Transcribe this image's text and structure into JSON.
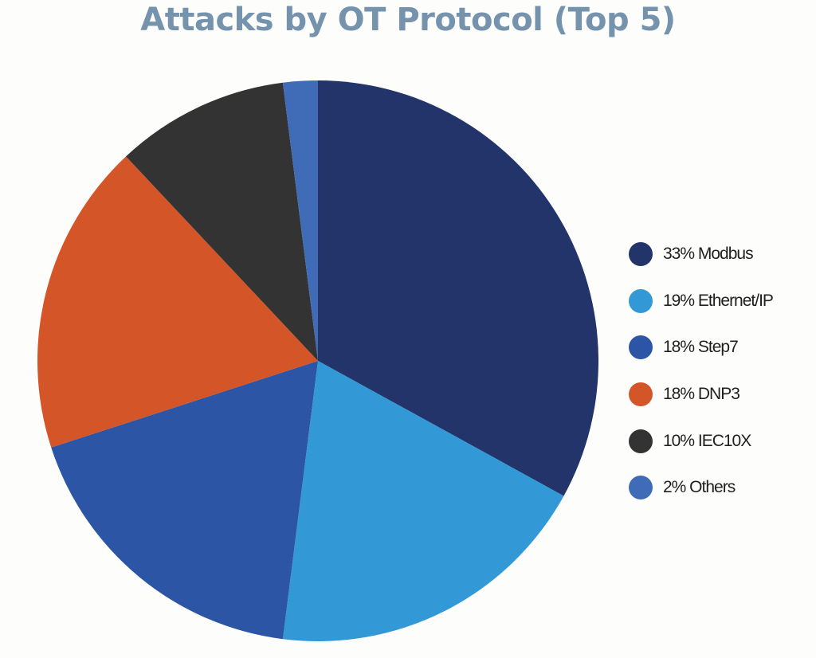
{
  "title": "Attacks by OT Protocol (Top 5)",
  "chart_data": {
    "type": "pie",
    "title": "Attacks by OT Protocol (Top 5)",
    "categories": [
      "Modbus",
      "Ethernet/IP",
      "Step7",
      "DNP3",
      "IEC10X",
      "Others"
    ],
    "values": [
      33,
      19,
      18,
      18,
      10,
      2
    ],
    "unit": "%",
    "colors": [
      "#22346a",
      "#3399d6",
      "#2c56a5",
      "#d45527",
      "#333333",
      "#3f6bb7"
    ],
    "start_angle": "12 o'clock, clockwise",
    "legend_position": "right",
    "legend": [
      {
        "label": "33% Modbus",
        "color": "#22346a"
      },
      {
        "label": "19% Ethernet/IP",
        "color": "#3399d6"
      },
      {
        "label": "18% Step7",
        "color": "#2c56a5"
      },
      {
        "label": "18% DNP3",
        "color": "#d45527"
      },
      {
        "label": "10% IEC10X",
        "color": "#333333"
      },
      {
        "label": "2% Others",
        "color": "#3f6bb7"
      }
    ]
  }
}
